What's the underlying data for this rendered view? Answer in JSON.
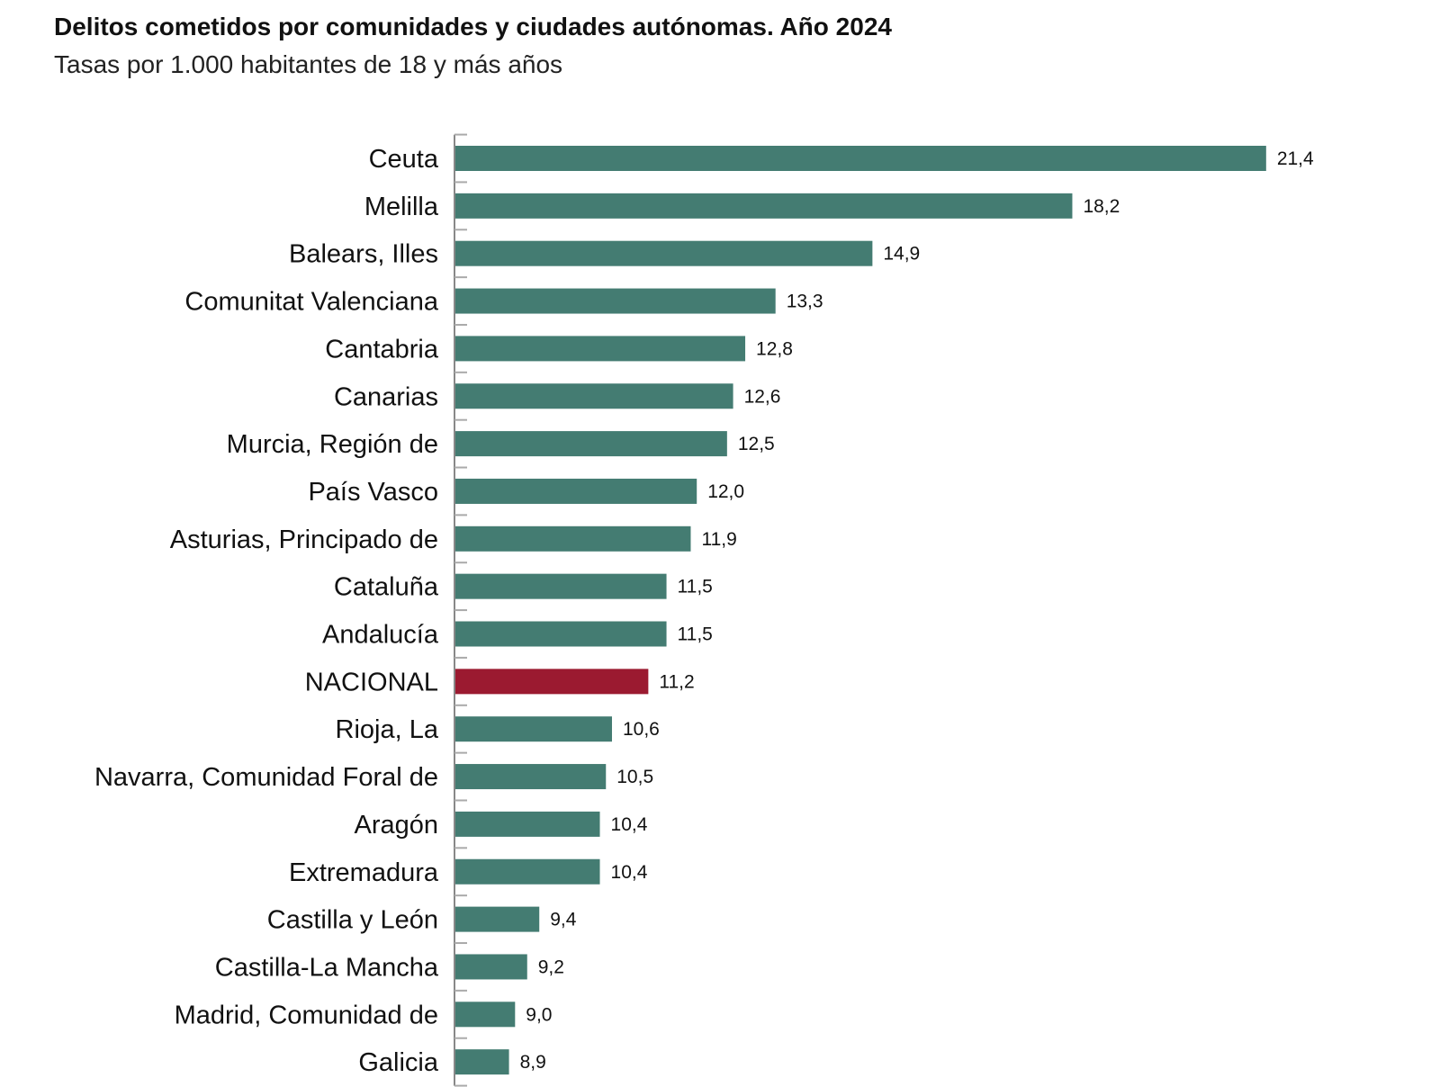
{
  "chart_data": {
    "type": "bar",
    "orientation": "horizontal",
    "title": "Delitos cometidos por comunidades y ciudades autónomas. Año 2024",
    "subtitle": "Tasas por 1.000 habitantes de 18 y más años",
    "categories": [
      "Ceuta",
      "Melilla",
      "Balears, Illes",
      "Comunitat Valenciana",
      "Cantabria",
      "Canarias",
      "Murcia, Región de",
      "País Vasco",
      "Asturias, Principado de",
      "Cataluña",
      "Andalucía",
      "NACIONAL",
      "Rioja, La",
      "Navarra, Comunidad Foral de",
      "Aragón",
      "Extremadura",
      "Castilla y León",
      "Castilla-La Mancha",
      "Madrid, Comunidad de",
      "Galicia"
    ],
    "values": [
      21.4,
      18.2,
      14.9,
      13.3,
      12.8,
      12.6,
      12.5,
      12.0,
      11.9,
      11.5,
      11.5,
      11.2,
      10.6,
      10.5,
      10.4,
      10.4,
      9.4,
      9.2,
      9.0,
      8.9
    ],
    "value_labels": [
      "21,4",
      "18,2",
      "14,9",
      "13,3",
      "12,8",
      "12,6",
      "12,5",
      "12,0",
      "11,9",
      "11,5",
      "11,5",
      "11,2",
      "10,6",
      "10,5",
      "10,4",
      "10,4",
      "9,4",
      "9,2",
      "9,0",
      "8,9"
    ],
    "xlim": [
      8,
      22
    ],
    "grid": false,
    "colors": {
      "bar": "#447c72",
      "highlight": "#9b1a30",
      "axis": "#888888"
    },
    "highlight_category": "NACIONAL"
  }
}
